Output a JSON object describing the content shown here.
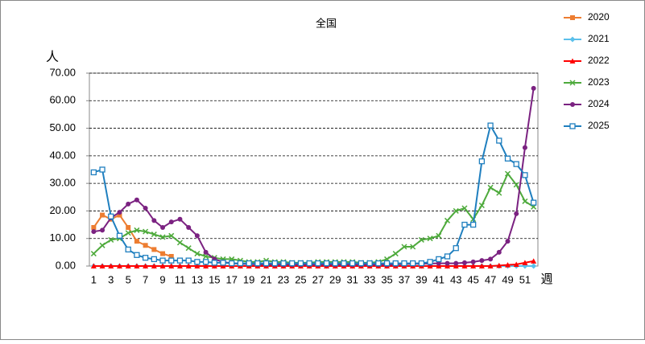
{
  "chart_data": {
    "type": "line",
    "title": "全国",
    "y_label": "人",
    "x_label": "週",
    "categories": [
      "1",
      null,
      "3",
      null,
      "5",
      null,
      "7",
      null,
      "9",
      null,
      "11",
      null,
      "13",
      null,
      "15",
      null,
      "17",
      null,
      "19",
      null,
      "21",
      null,
      "23",
      null,
      "25",
      null,
      "27",
      null,
      "29",
      null,
      "31",
      null,
      "33",
      null,
      "35",
      null,
      "37",
      null,
      "39",
      null,
      "41",
      null,
      "43",
      null,
      "45",
      null,
      "47",
      null,
      "49",
      null,
      "51",
      null
    ],
    "ylim": [
      0,
      70
    ],
    "yticks": [
      {
        "value": 0,
        "label": "0.00"
      },
      {
        "value": 10,
        "label": "10.00"
      },
      {
        "value": 20,
        "label": "20.00"
      },
      {
        "value": 30,
        "label": "30.00"
      },
      {
        "value": 40,
        "label": "40.00"
      },
      {
        "value": 50,
        "label": "50.00"
      },
      {
        "value": 60,
        "label": "60.00"
      },
      {
        "value": 70,
        "label": "70.00"
      }
    ],
    "grid": true,
    "legend": "right",
    "series": [
      {
        "name": "2020",
        "color": "#ed7d31",
        "marker": "square",
        "values": [
          14,
          18.5,
          17,
          18.5,
          14,
          9,
          7.5,
          6,
          4.5,
          3.5,
          null,
          null,
          null,
          null,
          null,
          null,
          null,
          null,
          null,
          null,
          null,
          null,
          null,
          null,
          null,
          null,
          null,
          null,
          null,
          null,
          null,
          null,
          null,
          null,
          null,
          null,
          null,
          null,
          null,
          null,
          null,
          null,
          null,
          null,
          null,
          null,
          null,
          null,
          null,
          null,
          null,
          null
        ]
      },
      {
        "name": "2021",
        "color": "#5bc0eb",
        "marker": "diamond",
        "values": [
          0,
          0,
          0,
          0,
          0,
          0,
          0,
          0,
          0,
          0,
          0,
          0,
          0,
          0,
          0,
          0,
          0,
          0,
          0,
          0,
          0,
          0,
          0,
          0,
          0,
          0,
          0,
          0,
          0,
          0,
          0,
          0,
          0,
          0,
          0,
          0,
          0,
          0,
          0,
          0,
          0,
          0,
          0,
          0,
          0,
          0,
          0,
          0,
          0,
          0,
          0,
          0
        ]
      },
      {
        "name": "2022",
        "color": "#ff0000",
        "marker": "triangle",
        "values": [
          0,
          0,
          0,
          0,
          0,
          0,
          0,
          0,
          0,
          0,
          0,
          0,
          0,
          0,
          0,
          0,
          0,
          0,
          0,
          0,
          0,
          0,
          0,
          0,
          0,
          0,
          0,
          0,
          0,
          0,
          0,
          0,
          0,
          0,
          0,
          0,
          0,
          0,
          0,
          0,
          0,
          0,
          0,
          0,
          0,
          0,
          0,
          0.2,
          0.4,
          0.6,
          1.2,
          1.8
        ]
      },
      {
        "name": "2023",
        "color": "#4eaa3c",
        "marker": "x",
        "values": [
          4.5,
          7.5,
          9.5,
          10,
          12,
          13,
          12.5,
          11.5,
          10.5,
          11,
          8.5,
          6.5,
          4.5,
          3.5,
          3,
          2.5,
          2.5,
          2,
          1.5,
          1.5,
          2,
          1.5,
          1.5,
          1.2,
          1.2,
          1.2,
          1.5,
          1.5,
          1.5,
          1.5,
          1.5,
          1.2,
          1.2,
          1.5,
          2.5,
          4.5,
          7,
          7,
          9.5,
          10,
          11,
          16.5,
          20,
          21,
          17,
          22,
          28.5,
          26.5,
          33.5,
          29.5,
          23.5,
          21.5
        ]
      },
      {
        "name": "2024",
        "color": "#7b2281",
        "marker": "circle",
        "values": [
          12.5,
          13,
          17.5,
          19.5,
          22.5,
          24,
          21,
          16.5,
          14,
          16,
          17,
          14,
          11,
          5,
          2.5,
          1.5,
          1,
          0.8,
          0.7,
          0.6,
          0.6,
          0.5,
          0.5,
          0.5,
          0.5,
          0.5,
          0.5,
          0.5,
          0.5,
          0.5,
          0.5,
          0.5,
          0.5,
          0.5,
          0.5,
          0.6,
          0.7,
          0.8,
          0.8,
          0.9,
          1,
          1,
          1,
          1.2,
          1.5,
          2,
          2.5,
          5,
          9,
          19,
          43,
          64.5
        ]
      },
      {
        "name": "2025",
        "color": "#1f7fbf",
        "marker": "opensquare",
        "values": [
          34,
          35,
          18,
          11,
          6,
          4,
          3,
          2.5,
          2,
          2,
          2,
          2,
          1.5,
          1.5,
          1.2,
          1.2,
          1,
          1,
          1,
          1,
          1,
          1,
          1,
          1,
          1,
          1,
          1,
          1,
          1,
          1,
          1,
          1,
          1,
          1,
          1,
          1,
          1,
          1,
          1,
          1.5,
          2.5,
          3.5,
          6.5,
          15,
          15,
          38,
          51,
          45.5,
          39,
          37,
          33,
          23
        ]
      }
    ]
  }
}
